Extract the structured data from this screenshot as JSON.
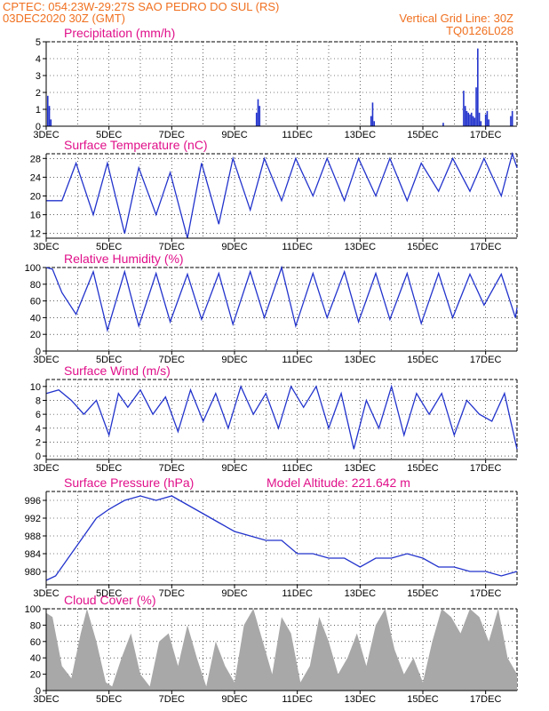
{
  "header": {
    "left_line1": "CPTEC:   054:23W-29:27S   SAO PEDRO DO SUL (RS)",
    "left_line2": "03DEC2020  30Z  (GMT)",
    "right_line1": "Vertical Grid Line: 30Z",
    "right_line2": "TQ0126L028"
  },
  "colors": {
    "header": "#f07020",
    "title": "#e0108a",
    "line": "#2233cc",
    "cloud": "#a8a8a8",
    "axis": "#000000"
  },
  "x_axis": {
    "day_start": 3,
    "day_end": 18,
    "tick_labels": [
      "3DEC",
      "5DEC",
      "7DEC",
      "9DEC",
      "11DEC",
      "13DEC",
      "15DEC",
      "17DEC"
    ],
    "tick_days": [
      3,
      5,
      7,
      9,
      11,
      13,
      15,
      17
    ]
  },
  "chart_data": [
    {
      "type": "bar",
      "title": "Precipitation (mm/h)",
      "ylim": [
        0,
        5
      ],
      "yticks": [
        0,
        1,
        2,
        3,
        4,
        5
      ],
      "series": [
        {
          "x": [
            3.05,
            3.1,
            3.15,
            9.7,
            9.75,
            9.8,
            13.35,
            13.4,
            13.45,
            15.65,
            16.3,
            16.35,
            16.4,
            16.45,
            16.5,
            16.55,
            16.6,
            16.65,
            16.7,
            16.75,
            16.8,
            16.85,
            17.0,
            17.05,
            17.1,
            17.8,
            17.85
          ],
          "values": [
            1.8,
            1.2,
            0.4,
            0.8,
            1.6,
            1.2,
            0.6,
            1.4,
            0.3,
            0.2,
            2.1,
            1.2,
            0.9,
            0.8,
            0.7,
            0.8,
            0.6,
            0.5,
            2.3,
            4.6,
            0.8,
            0.3,
            0.7,
            0.9,
            0.4,
            0.6,
            0.9
          ]
        }
      ]
    },
    {
      "type": "line",
      "title": "Surface Temperature (nC)",
      "ylim": [
        11,
        29
      ],
      "yticks": [
        12,
        16,
        20,
        24,
        28
      ],
      "series": [
        {
          "x": [
            3,
            3.5,
            3.95,
            4.5,
            4.95,
            5.5,
            5.95,
            6.5,
            6.95,
            7.5,
            7.95,
            8.5,
            8.95,
            9.5,
            9.95,
            10.5,
            10.95,
            11.5,
            11.95,
            12.5,
            12.95,
            13.5,
            13.95,
            14.5,
            14.95,
            15.5,
            15.95,
            16.5,
            16.95,
            17.5,
            17.85,
            18
          ],
          "values": [
            19,
            19,
            27,
            16,
            27,
            12,
            26,
            16,
            25,
            11,
            27,
            14,
            28,
            17,
            28,
            19,
            28,
            20,
            28,
            19,
            28,
            20,
            28,
            19,
            27,
            21,
            28,
            21,
            28,
            20,
            29,
            26
          ]
        }
      ]
    },
    {
      "type": "line",
      "title": "Relative Humidity (%)",
      "ylim": [
        0,
        100
      ],
      "yticks": [
        0,
        20,
        40,
        60,
        80,
        100
      ],
      "series": [
        {
          "x": [
            3,
            3.2,
            3.5,
            3.95,
            4.5,
            4.95,
            5.5,
            5.95,
            6.5,
            6.95,
            7.5,
            7.95,
            8.5,
            8.95,
            9.5,
            9.95,
            10.5,
            10.95,
            11.5,
            11.95,
            12.5,
            12.95,
            13.5,
            13.95,
            14.5,
            14.95,
            15.5,
            15.95,
            16.5,
            16.95,
            17.5,
            17.95,
            18
          ],
          "values": [
            100,
            98,
            70,
            44,
            95,
            25,
            95,
            30,
            93,
            35,
            92,
            38,
            93,
            32,
            95,
            40,
            100,
            30,
            93,
            40,
            95,
            35,
            93,
            38,
            93,
            33,
            93,
            40,
            92,
            55,
            92,
            40,
            52
          ]
        }
      ]
    },
    {
      "type": "line",
      "title": "Surface Wind (m/s)",
      "ylim": [
        -0.5,
        11
      ],
      "yticks": [
        0,
        2,
        4,
        6,
        8,
        10
      ],
      "series": [
        {
          "x": [
            3,
            3.4,
            3.8,
            4.2,
            4.6,
            5.0,
            5.3,
            5.6,
            6.0,
            6.4,
            6.8,
            7.2,
            7.6,
            8.0,
            8.4,
            8.8,
            9.2,
            9.6,
            10.0,
            10.4,
            10.8,
            11.2,
            11.6,
            12.0,
            12.4,
            12.8,
            13.2,
            13.6,
            14.0,
            14.4,
            14.8,
            15.2,
            15.6,
            16.0,
            16.4,
            16.8,
            17.2,
            17.6,
            18
          ],
          "values": [
            9,
            9.5,
            8,
            6,
            8,
            3,
            9,
            7,
            9.5,
            6,
            8.5,
            3.5,
            9.5,
            5,
            9,
            4,
            10,
            6,
            9,
            4,
            10,
            7,
            10,
            4,
            9,
            1,
            8,
            4,
            10,
            3,
            9,
            6,
            9,
            3,
            8,
            6,
            5,
            9,
            1
          ]
        }
      ]
    },
    {
      "type": "line",
      "title": "Surface Pressure (hPa)",
      "annotation": "Model Altitude: 221.642  m",
      "ylim": [
        977,
        998
      ],
      "yticks": [
        980,
        984,
        988,
        992,
        996
      ],
      "series": [
        {
          "x": [
            3,
            3.3,
            3.7,
            4.2,
            4.6,
            5.0,
            5.5,
            6.0,
            6.5,
            7.0,
            7.5,
            8.0,
            8.5,
            9.0,
            9.5,
            10.0,
            10.5,
            11.0,
            11.5,
            12.0,
            12.5,
            13.0,
            13.5,
            14.0,
            14.5,
            15.0,
            15.5,
            16.0,
            16.5,
            17.0,
            17.5,
            18
          ],
          "values": [
            978,
            979,
            983,
            988,
            992,
            994,
            996,
            997,
            996,
            997,
            995,
            993,
            991,
            989,
            988,
            987,
            987,
            984,
            984,
            983,
            983,
            981,
            983,
            983,
            984,
            983,
            981,
            981,
            980,
            980,
            979,
            980
          ]
        }
      ]
    },
    {
      "type": "area",
      "title": "Cloud Cover (%)",
      "ylim": [
        0,
        100
      ],
      "yticks": [
        0,
        20,
        40,
        60,
        80,
        100
      ],
      "series": [
        {
          "x": [
            3,
            3.2,
            3.5,
            3.8,
            4.1,
            4.3,
            4.6,
            4.9,
            5.1,
            5.4,
            5.7,
            6.0,
            6.3,
            6.6,
            6.9,
            7.2,
            7.5,
            7.8,
            8.1,
            8.4,
            8.7,
            9.0,
            9.3,
            9.6,
            9.9,
            10.2,
            10.5,
            10.8,
            11.1,
            11.4,
            11.7,
            12.0,
            12.3,
            12.6,
            12.9,
            13.2,
            13.5,
            13.8,
            14.1,
            14.4,
            14.7,
            15.0,
            15.3,
            15.6,
            15.9,
            16.2,
            16.5,
            16.8,
            17.1,
            17.4,
            17.7,
            18
          ],
          "values": [
            95,
            90,
            30,
            15,
            70,
            100,
            60,
            10,
            5,
            40,
            70,
            20,
            5,
            60,
            70,
            30,
            80,
            40,
            5,
            60,
            30,
            10,
            80,
            100,
            60,
            20,
            90,
            70,
            10,
            30,
            90,
            60,
            20,
            40,
            70,
            30,
            80,
            100,
            50,
            20,
            40,
            10,
            60,
            100,
            90,
            70,
            100,
            90,
            60,
            100,
            40,
            20
          ]
        }
      ]
    }
  ]
}
